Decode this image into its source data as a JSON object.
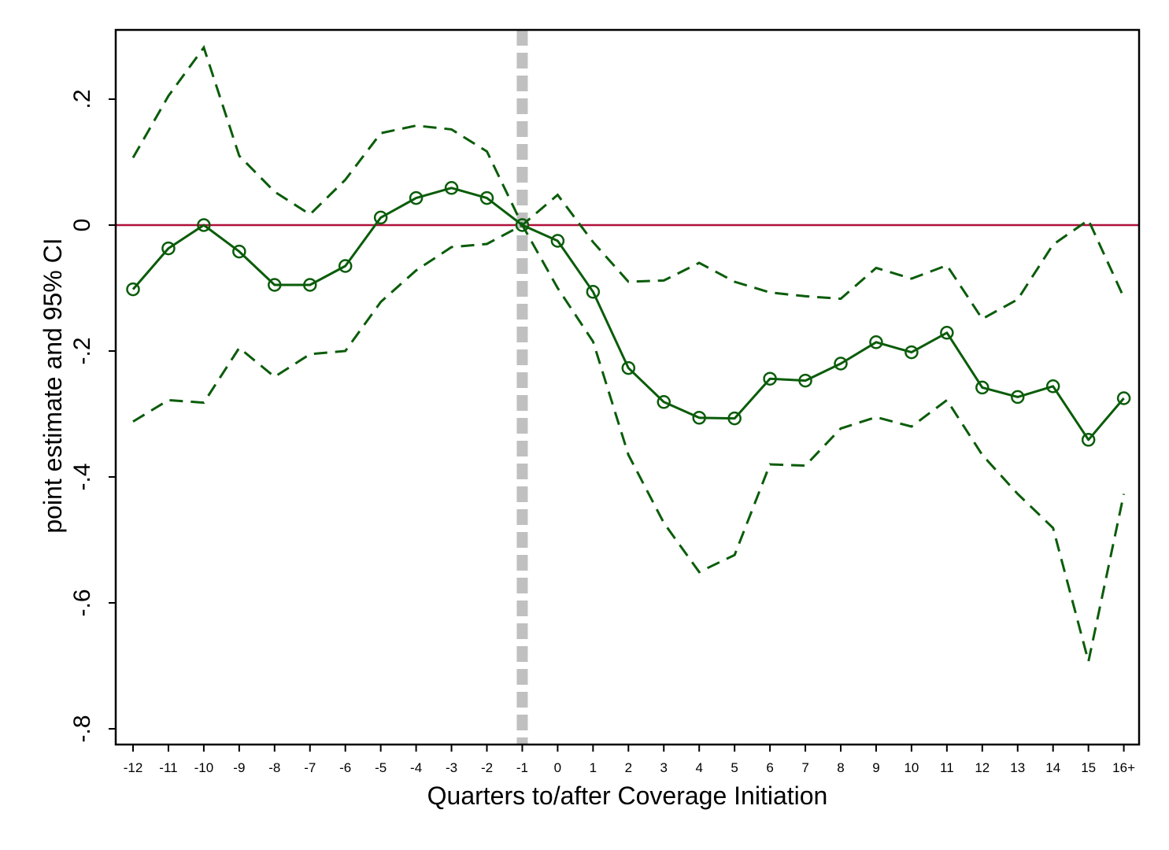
{
  "chart_data": {
    "type": "line",
    "xlabel": "Quarters to/after Coverage Initiation",
    "ylabel": "point estimate and 95% CI",
    "categories": [
      "-12",
      "-11",
      "-10",
      "-9",
      "-8",
      "-7",
      "-6",
      "-5",
      "-4",
      "-3",
      "-2",
      "-1",
      "0",
      "1",
      "2",
      "3",
      "4",
      "5",
      "6",
      "7",
      "8",
      "9",
      "10",
      "11",
      "12",
      "13",
      "14",
      "15",
      "16+"
    ],
    "ylim": [
      -0.82,
      0.31
    ],
    "yticks": [
      0.2,
      0,
      -0.2,
      -0.4,
      -0.6,
      -0.8
    ],
    "ytick_labels": [
      ".2",
      "0",
      "-.2",
      "-.4",
      "-.6",
      "-.8"
    ],
    "reference_line_y": 0,
    "event_line_category": "-1",
    "series": [
      {
        "role": "point_estimate",
        "values": [
          -0.102,
          -0.037,
          0.0,
          -0.042,
          -0.095,
          -0.095,
          -0.065,
          0.012,
          0.043,
          0.059,
          0.043,
          0.0,
          -0.025,
          -0.106,
          -0.227,
          -0.281,
          -0.306,
          -0.307,
          -0.244,
          -0.247,
          -0.22,
          -0.186,
          -0.202,
          -0.171,
          -0.258,
          -0.273,
          -0.256,
          -0.341,
          -0.275
        ]
      },
      {
        "role": "ci_upper",
        "values": [
          0.107,
          0.205,
          0.282,
          0.11,
          0.053,
          0.017,
          0.072,
          0.146,
          0.158,
          0.152,
          0.117,
          0.0,
          0.048,
          -0.027,
          -0.09,
          -0.088,
          -0.06,
          -0.09,
          -0.107,
          -0.113,
          -0.117,
          -0.068,
          -0.085,
          -0.064,
          -0.149,
          -0.118,
          -0.031,
          0.008,
          -0.115
        ]
      },
      {
        "role": "ci_lower",
        "values": [
          -0.312,
          -0.278,
          -0.282,
          -0.195,
          -0.241,
          -0.205,
          -0.2,
          -0.122,
          -0.072,
          -0.035,
          -0.03,
          0.0,
          -0.1,
          -0.185,
          -0.365,
          -0.473,
          -0.551,
          -0.524,
          -0.38,
          -0.382,
          -0.323,
          -0.305,
          -0.32,
          -0.278,
          -0.365,
          -0.427,
          -0.481,
          -0.693,
          -0.427
        ]
      }
    ],
    "colors": {
      "estimate": "#0a5c0a",
      "ci": "#0a5c0a",
      "zero_line": "#b0103a",
      "event_line": "#c0c0c0"
    },
    "grid": false,
    "legend": "none"
  }
}
